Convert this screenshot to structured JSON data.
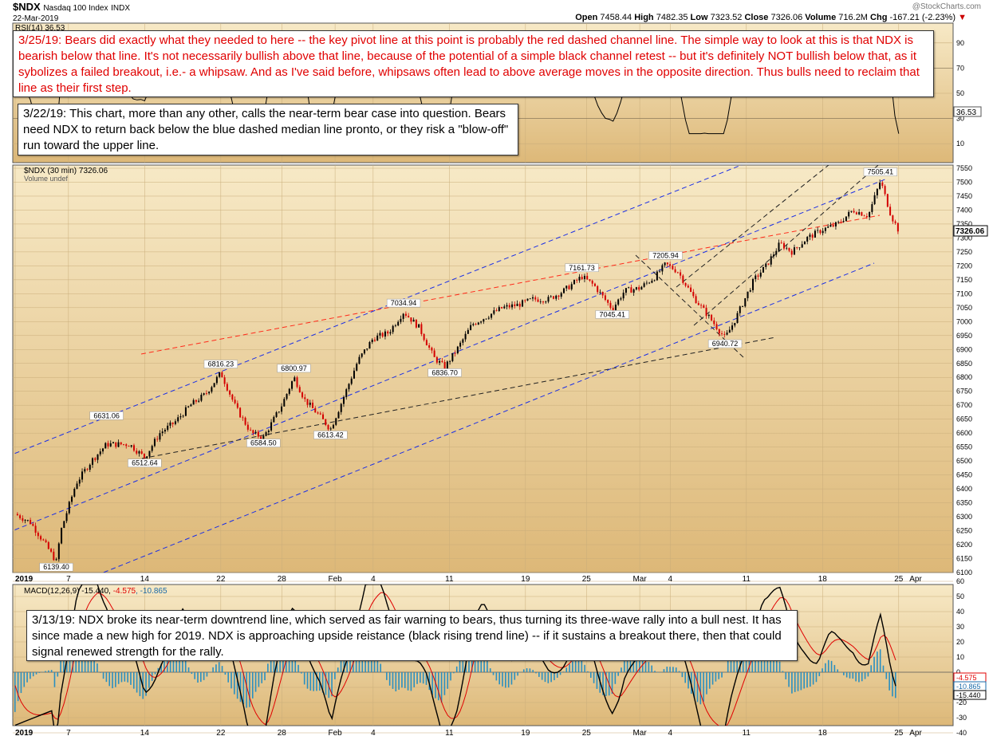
{
  "header": {
    "symbol": "$NDX",
    "name": "Nasdaq 100 Index",
    "exchange": "INDX",
    "date": "22-Mar-2019",
    "open_label": "Open",
    "open": "7458.44",
    "high_label": "High",
    "high": "7482.35",
    "low_label": "Low",
    "low": "7323.52",
    "close_label": "Close",
    "close": "7326.06",
    "volume_label": "Volume",
    "volume": "716.2M",
    "chg_label": "Chg",
    "chg": "-167.21 (-2.23%)",
    "watermark": "@StockCharts.com"
  },
  "rsi_panel": {
    "label": "RSI(14) 36.53",
    "ticks": [
      "90",
      "70",
      "50",
      "30",
      "10"
    ],
    "current": "36.53"
  },
  "price_panel": {
    "label": "$NDX (30 min) 7326.06",
    "sublabel": "Volume undef",
    "current": "7326.06"
  },
  "macd_panel": {
    "label_main": "MACD(12,26,9) -15.440, ",
    "label_signal": "-4.575",
    "label_hist": ", -10.865",
    "ticks": [
      "60",
      "50",
      "40",
      "30",
      "20",
      "10",
      "0",
      "-10",
      "-20",
      "-30",
      "-40"
    ],
    "badges": [
      "-4.575",
      "-10.865",
      "-15.440"
    ]
  },
  "x_axis": [
    "2019",
    "7",
    "14",
    "22",
    "28",
    "Feb",
    "4",
    "11",
    "19",
    "25",
    "Mar",
    "4",
    "11",
    "18",
    "25",
    "Apr"
  ],
  "notes": {
    "note_0325": "3/25/19:  Bears did exactly what they needed to here -- the key pivot line at this point is probably the red dashed channel line.  The simple way to look at this is that NDX is bearish below that line.  It's not necessarily bullish above that line, because of the potential of a simple black channel retest -- but it's definitely NOT bullish below that, as it sybolizes a failed breakout, i.e.- a whipsaw.  And as I've said before, whipsaws often lead to above average moves in the opposite direction.  Thus bulls need to reclaim that line as their first step.",
    "note_0322": "3/22/19:  This chart, more than any other, calls the near-term bear case into question.  Bears need NDX to return back below the blue dashed median line pronto, or they risk a \"blow-off\" run toward the upper line.",
    "note_0313": "3/13/19:  NDX broke its near-term downtrend line, which served as fair warning to bears, thus turning its three-wave rally into a bull nest.  It has since made a new high for 2019.  NDX is approaching upside reistance (black rising trend line) -- if it sustains a breakout there, then that could signal renewed strength for the rally."
  },
  "colors": {
    "panel_bg_top": "#f7e9c6",
    "panel_bg_bottom": "#ddb878",
    "up_candle": "#000000",
    "down_candle": "#d40000",
    "channel_blue": "#1a2ee6",
    "pivot_red": "#ff2a1a",
    "trend_black": "#222222",
    "macd_hist": "#2a8fc0",
    "note_red": "#e00000"
  },
  "chart_data": {
    "type": "line",
    "title": "$NDX Nasdaq 100 Index (30 min)",
    "ylim": [
      6100,
      7550
    ],
    "y_ticks": [
      6100,
      6150,
      6200,
      6250,
      6300,
      6350,
      6400,
      6450,
      6500,
      6550,
      6600,
      6650,
      6700,
      6750,
      6800,
      6850,
      6900,
      6950,
      7000,
      7050,
      7100,
      7150,
      7200,
      7250,
      7300,
      7350,
      7400,
      7450,
      7500,
      7550
    ],
    "x_index_range": [
      0,
      58
    ],
    "x_ticks": [
      {
        "i": 0,
        "label": "2019"
      },
      {
        "i": 3.5,
        "label": "7"
      },
      {
        "i": 8.5,
        "label": "14"
      },
      {
        "i": 13.5,
        "label": "22"
      },
      {
        "i": 17.5,
        "label": "28"
      },
      {
        "i": 21,
        "label": "Feb"
      },
      {
        "i": 23.5,
        "label": "4"
      },
      {
        "i": 28.5,
        "label": "11"
      },
      {
        "i": 33.5,
        "label": "19"
      },
      {
        "i": 37.5,
        "label": "25"
      },
      {
        "i": 41,
        "label": "Mar"
      },
      {
        "i": 43,
        "label": "4"
      },
      {
        "i": 48,
        "label": "11"
      },
      {
        "i": 53,
        "label": "18"
      },
      {
        "i": 58,
        "label": "25"
      },
      {
        "i": 62,
        "label": "Apr"
      }
    ],
    "series": [
      {
        "name": "$NDX close (approx)",
        "points": [
          [
            0,
            6310
          ],
          [
            1,
            6280
          ],
          [
            2,
            6200
          ],
          [
            2.7,
            6139.4
          ],
          [
            3,
            6250
          ],
          [
            4,
            6420
          ],
          [
            5,
            6500
          ],
          [
            6,
            6560
          ],
          [
            7.5,
            6560
          ],
          [
            8.5,
            6512.64
          ],
          [
            9.5,
            6600
          ],
          [
            10.5,
            6640
          ],
          [
            11.5,
            6700
          ],
          [
            12.5,
            6740
          ],
          [
            13.5,
            6816.23
          ],
          [
            14.5,
            6690
          ],
          [
            15.5,
            6600
          ],
          [
            16.3,
            6584.5
          ],
          [
            17.5,
            6700
          ],
          [
            18.3,
            6800.97
          ],
          [
            19,
            6720
          ],
          [
            20,
            6660
          ],
          [
            20.7,
            6613.42
          ],
          [
            21.5,
            6720
          ],
          [
            22.5,
            6860
          ],
          [
            23.5,
            6940
          ],
          [
            24.5,
            6960
          ],
          [
            25.5,
            7034.94
          ],
          [
            26.5,
            6980
          ],
          [
            27.5,
            6870
          ],
          [
            28.2,
            6836.7
          ],
          [
            29,
            6900
          ],
          [
            30,
            6990
          ],
          [
            31,
            7020
          ],
          [
            32,
            7050
          ],
          [
            33,
            7060
          ],
          [
            34,
            7080
          ],
          [
            35,
            7080
          ],
          [
            36,
            7110
          ],
          [
            37.2,
            7161.73
          ],
          [
            38,
            7130
          ],
          [
            39.2,
            7045.41
          ],
          [
            40,
            7110
          ],
          [
            41,
            7120
          ],
          [
            42,
            7160
          ],
          [
            42.7,
            7205.94
          ],
          [
            43.5,
            7180
          ],
          [
            44.5,
            7090
          ],
          [
            45.5,
            7020
          ],
          [
            46.6,
            6940.72
          ],
          [
            47.2,
            7000
          ],
          [
            47.8,
            7070
          ],
          [
            48.5,
            7150
          ],
          [
            49.3,
            7200
          ],
          [
            50.2,
            7280
          ],
          [
            51,
            7250
          ],
          [
            52,
            7300
          ],
          [
            53,
            7330
          ],
          [
            54,
            7350
          ],
          [
            55,
            7400
          ],
          [
            56,
            7380
          ],
          [
            56.8,
            7505.41
          ],
          [
            57.5,
            7380
          ],
          [
            58,
            7326.06
          ]
        ]
      }
    ],
    "price_labels": [
      "6139.40",
      "6512.64",
      "6631.06",
      "6816.23",
      "6584.50",
      "6800.97",
      "6613.42",
      "7034.94",
      "6836.70",
      "7161.73",
      "7045.41",
      "7205.94",
      "6940.72",
      "7505.41"
    ],
    "rsi": {
      "ylim": [
        0,
        100
      ],
      "last": 36.53
    },
    "macd": {
      "ylim": [
        -40,
        60
      ],
      "macd": -15.44,
      "signal": -4.575,
      "histogram": -10.865
    },
    "annotations": [
      "blue dashed channel (upper, median, lower)",
      "red dashed pivot channel line",
      "black dashed rising trend line",
      "black dashed downtrend line",
      "black dashed rising channel"
    ]
  }
}
